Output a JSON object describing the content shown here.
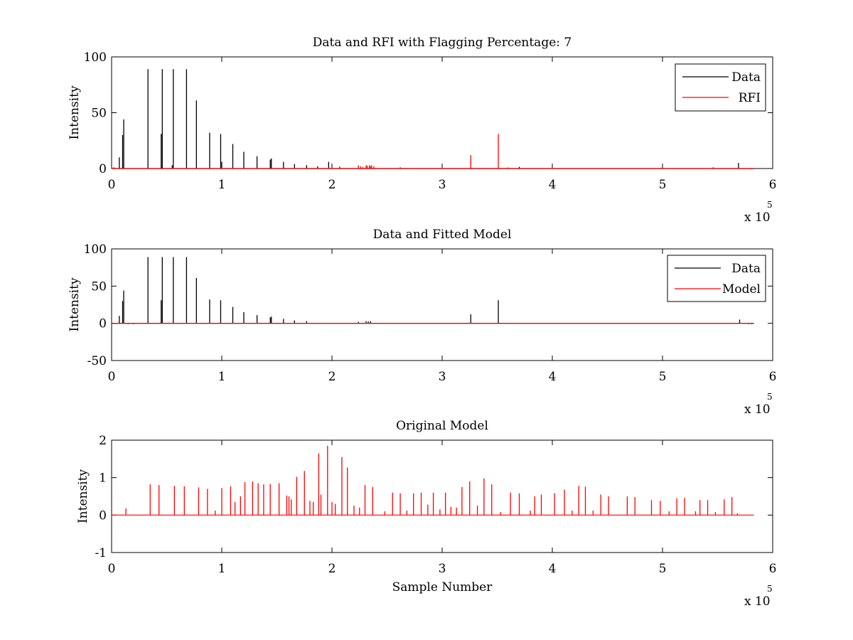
{
  "chart_data": [
    {
      "type": "line",
      "title": "Data and RFI with Flagging Percentage: 7",
      "xlabel": "",
      "ylabel": "Intensity",
      "x_exponent_label": "x 10",
      "x_exponent_power": "5",
      "xlim": [
        0,
        6
      ],
      "ylim": [
        0,
        100
      ],
      "xticks": [
        0,
        1,
        2,
        3,
        4,
        5,
        6
      ],
      "yticks": [
        0,
        50,
        100
      ],
      "x_data_end": 5.83,
      "grid": false,
      "legend": {
        "placement": "top-right",
        "entries": [
          {
            "label": "Data",
            "color": "#000000"
          },
          {
            "label": "RFI",
            "color": "#ff0000"
          }
        ]
      },
      "series": [
        {
          "name": "Data",
          "color": "#000000",
          "baseline": 0,
          "peaks": [
            [
              0.02,
              1
            ],
            [
              0.07,
              10
            ],
            [
              0.1,
              30
            ],
            [
              0.11,
              44
            ],
            [
              0.33,
              89
            ],
            [
              0.45,
              31
            ],
            [
              0.46,
              89
            ],
            [
              0.55,
              3
            ],
            [
              0.56,
              89
            ],
            [
              0.68,
              89
            ],
            [
              0.77,
              61
            ],
            [
              0.89,
              32
            ],
            [
              0.99,
              31
            ],
            [
              1.0,
              6
            ],
            [
              1.1,
              22
            ],
            [
              1.2,
              15
            ],
            [
              1.32,
              11
            ],
            [
              1.44,
              8
            ],
            [
              1.45,
              9
            ],
            [
              1.56,
              6
            ],
            [
              1.66,
              4
            ],
            [
              1.77,
              3
            ],
            [
              1.87,
              2
            ],
            [
              1.97,
              6
            ],
            [
              2.07,
              1.5
            ],
            [
              2.62,
              1
            ],
            [
              3.7,
              1.5
            ],
            [
              5.46,
              1
            ],
            [
              5.69,
              5
            ],
            [
              5.8,
              0.5
            ]
          ]
        },
        {
          "name": "RFI",
          "color": "#ff0000",
          "baseline": 0,
          "peaks": [
            [
              2.24,
              3
            ],
            [
              2.26,
              2
            ],
            [
              2.28,
              1.5
            ],
            [
              2.31,
              3
            ],
            [
              2.32,
              2.5
            ],
            [
              2.34,
              3
            ],
            [
              2.35,
              2
            ],
            [
              2.36,
              3
            ],
            [
              2.38,
              2
            ],
            [
              3.26,
              12
            ],
            [
              3.51,
              31
            ],
            [
              3.6,
              1
            ]
          ]
        }
      ]
    },
    {
      "type": "line",
      "title": "Data and Fitted Model",
      "xlabel": "",
      "ylabel": "Intensity",
      "x_exponent_label": "x 10",
      "x_exponent_power": "5",
      "xlim": [
        0,
        6
      ],
      "ylim": [
        -50,
        100
      ],
      "xticks": [
        0,
        1,
        2,
        3,
        4,
        5,
        6
      ],
      "yticks": [
        -50,
        0,
        50,
        100
      ],
      "x_data_end": 5.83,
      "grid": false,
      "legend": {
        "placement": "top-right",
        "entries": [
          {
            "label": "Data",
            "color": "#000000"
          },
          {
            "label": "Model",
            "color": "#ff0000"
          }
        ]
      },
      "series": [
        {
          "name": "Data",
          "color": "#000000",
          "baseline": 0,
          "peaks": [
            [
              0.07,
              10
            ],
            [
              0.1,
              30
            ],
            [
              0.11,
              44
            ],
            [
              0.15,
              -1
            ],
            [
              0.2,
              -1
            ],
            [
              0.33,
              89
            ],
            [
              0.45,
              31
            ],
            [
              0.46,
              89
            ],
            [
              0.56,
              89
            ],
            [
              0.68,
              89
            ],
            [
              0.77,
              61
            ],
            [
              0.89,
              32
            ],
            [
              0.99,
              31
            ],
            [
              1.1,
              22
            ],
            [
              1.2,
              15
            ],
            [
              1.32,
              11
            ],
            [
              1.44,
              8
            ],
            [
              1.45,
              9
            ],
            [
              1.56,
              6
            ],
            [
              1.66,
              4
            ],
            [
              1.77,
              3
            ],
            [
              2.24,
              2
            ],
            [
              2.31,
              3
            ],
            [
              2.33,
              2.5
            ],
            [
              2.35,
              3
            ],
            [
              3.26,
              12
            ],
            [
              3.51,
              31
            ],
            [
              5.7,
              5
            ],
            [
              5.78,
              -1
            ],
            [
              5.81,
              -1
            ]
          ]
        },
        {
          "name": "Model",
          "color": "#ff0000",
          "baseline": 0,
          "peaks": []
        }
      ]
    },
    {
      "type": "line",
      "title": "Original Model",
      "xlabel": "Sample Number",
      "ylabel": "Intensity",
      "x_exponent_label": "x 10",
      "x_exponent_power": "5",
      "xlim": [
        0,
        6
      ],
      "ylim": [
        -1,
        2
      ],
      "xticks": [
        0,
        1,
        2,
        3,
        4,
        5,
        6
      ],
      "yticks": [
        -1,
        0,
        1,
        2
      ],
      "x_data_end": 5.83,
      "grid": false,
      "series": [
        {
          "color": "#ff0000",
          "baseline": 0,
          "peaks": [
            [
              0.13,
              0.18
            ],
            [
              0.35,
              0.82
            ],
            [
              0.43,
              0.8
            ],
            [
              0.57,
              0.78
            ],
            [
              0.66,
              0.77
            ],
            [
              0.79,
              0.74
            ],
            [
              0.87,
              0.7
            ],
            [
              0.94,
              0.12
            ],
            [
              1.0,
              0.72
            ],
            [
              1.08,
              0.77
            ],
            [
              1.12,
              0.35
            ],
            [
              1.17,
              0.5
            ],
            [
              1.21,
              0.88
            ],
            [
              1.28,
              0.9
            ],
            [
              1.33,
              0.85
            ],
            [
              1.38,
              0.82
            ],
            [
              1.44,
              0.83
            ],
            [
              1.52,
              0.85
            ],
            [
              1.59,
              0.52
            ],
            [
              1.61,
              0.5
            ],
            [
              1.63,
              0.42
            ],
            [
              1.68,
              1.02
            ],
            [
              1.75,
              1.18
            ],
            [
              1.8,
              0.38
            ],
            [
              1.83,
              0.35
            ],
            [
              1.88,
              1.65
            ],
            [
              1.9,
              0.55
            ],
            [
              1.96,
              1.85
            ],
            [
              2.0,
              0.35
            ],
            [
              2.03,
              0.3
            ],
            [
              2.09,
              1.55
            ],
            [
              2.14,
              1.27
            ],
            [
              2.2,
              0.25
            ],
            [
              2.25,
              0.2
            ],
            [
              2.3,
              0.8
            ],
            [
              2.37,
              0.75
            ],
            [
              2.48,
              0.1
            ],
            [
              2.55,
              0.6
            ],
            [
              2.62,
              0.58
            ],
            [
              2.68,
              0.12
            ],
            [
              2.74,
              0.58
            ],
            [
              2.81,
              0.6
            ],
            [
              2.87,
              0.28
            ],
            [
              2.92,
              0.6
            ],
            [
              2.98,
              0.15
            ],
            [
              3.03,
              0.6
            ],
            [
              3.08,
              0.22
            ],
            [
              3.13,
              0.2
            ],
            [
              3.18,
              0.75
            ],
            [
              3.25,
              0.9
            ],
            [
              3.32,
              0.25
            ],
            [
              3.38,
              0.98
            ],
            [
              3.45,
              0.82
            ],
            [
              3.53,
              0.08
            ],
            [
              3.62,
              0.6
            ],
            [
              3.7,
              0.58
            ],
            [
              3.8,
              0.12
            ],
            [
              3.84,
              0.5
            ],
            [
              3.9,
              0.55
            ],
            [
              4.02,
              0.58
            ],
            [
              4.11,
              0.68
            ],
            [
              4.18,
              0.12
            ],
            [
              4.24,
              0.78
            ],
            [
              4.3,
              0.76
            ],
            [
              4.37,
              0.12
            ],
            [
              4.44,
              0.55
            ],
            [
              4.51,
              0.5
            ],
            [
              4.68,
              0.5
            ],
            [
              4.75,
              0.48
            ],
            [
              4.9,
              0.4
            ],
            [
              4.98,
              0.38
            ],
            [
              5.06,
              0.1
            ],
            [
              5.13,
              0.45
            ],
            [
              5.2,
              0.46
            ],
            [
              5.3,
              0.1
            ],
            [
              5.34,
              0.4
            ],
            [
              5.41,
              0.4
            ],
            [
              5.48,
              0.08
            ],
            [
              5.56,
              0.42
            ],
            [
              5.63,
              0.48
            ],
            [
              5.68,
              0.05
            ]
          ]
        }
      ]
    }
  ]
}
